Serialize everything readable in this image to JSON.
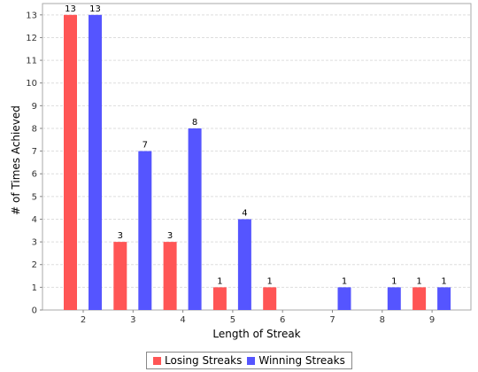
{
  "chart_data": {
    "type": "bar",
    "title": "",
    "xlabel": "Length of Streak",
    "ylabel": "# of Times Achieved",
    "categories": [
      "2",
      "3",
      "4",
      "5",
      "6",
      "7",
      "8",
      "9"
    ],
    "series": [
      {
        "name": "Losing Streaks",
        "color": "#ff5555",
        "values": [
          13,
          3,
          3,
          1,
          1,
          0,
          0,
          1
        ]
      },
      {
        "name": "Winning Streaks",
        "color": "#5555ff",
        "values": [
          13,
          7,
          8,
          4,
          0,
          1,
          1,
          1
        ]
      }
    ],
    "data_labels": [
      [
        "13",
        "3",
        "3",
        "1",
        "1",
        "",
        "",
        "1"
      ],
      [
        "13",
        "7",
        "8",
        "4",
        "",
        "1",
        "1",
        "1"
      ]
    ],
    "ylim": [
      0,
      13.5
    ],
    "yticks": [
      0,
      1,
      2,
      3,
      4,
      5,
      6,
      7,
      8,
      9,
      10,
      11,
      12,
      13
    ],
    "grid": true,
    "legend_position": "bottom"
  }
}
